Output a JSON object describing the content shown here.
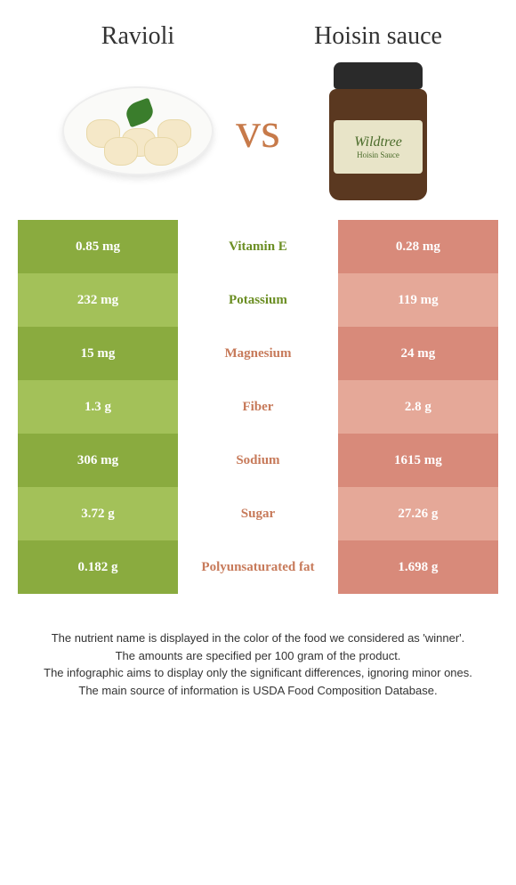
{
  "food1": {
    "name": "Ravioli"
  },
  "food2": {
    "name": "Hoisin sauce"
  },
  "vs": "vs",
  "jar_label": {
    "brand": "Wildtree",
    "product": "Hoisin Sauce"
  },
  "colors": {
    "green_dark": "#8aab3f",
    "green_light": "#a3c159",
    "coral_dark": "#d88a7a",
    "coral_light": "#e5a898",
    "white": "#ffffff",
    "text_green": "#6b8e23",
    "text_coral": "#c77a5a",
    "cell_text": "#ffffff"
  },
  "rows": [
    {
      "left": "0.85 mg",
      "mid": "Vitamin E",
      "right": "0.28 mg",
      "winner": "left"
    },
    {
      "left": "232 mg",
      "mid": "Potassium",
      "right": "119 mg",
      "winner": "left"
    },
    {
      "left": "15 mg",
      "mid": "Magnesium",
      "right": "24 mg",
      "winner": "right"
    },
    {
      "left": "1.3 g",
      "mid": "Fiber",
      "right": "2.8 g",
      "winner": "right"
    },
    {
      "left": "306 mg",
      "mid": "Sodium",
      "right": "1615 mg",
      "winner": "right"
    },
    {
      "left": "3.72 g",
      "mid": "Sugar",
      "right": "27.26 g",
      "winner": "right"
    },
    {
      "left": "0.182 g",
      "mid": "Polyunsaturated fat",
      "right": "1.698 g",
      "winner": "right"
    }
  ],
  "footer": {
    "l1": "The nutrient name is displayed in the color of the food we considered as 'winner'.",
    "l2": "The amounts are specified per 100 gram of the product.",
    "l3": "The infographic aims to display only the significant differences, ignoring minor ones.",
    "l4": "The main source of information is USDA Food Composition Database."
  }
}
